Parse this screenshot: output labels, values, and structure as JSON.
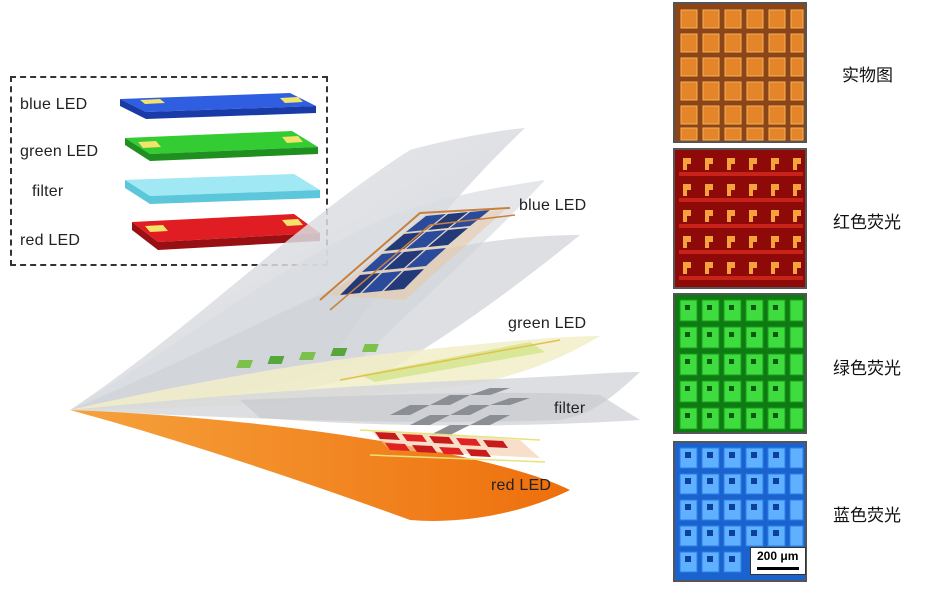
{
  "legend": {
    "labels": [
      "blue LED",
      "green LED",
      "filter",
      "red LED"
    ]
  },
  "stack_labels": {
    "blue": "blue LED",
    "green": "green LED",
    "filter": "filter",
    "red": "red LED"
  },
  "panels": [
    {
      "caption": "实物图",
      "theme": "photo-orange",
      "color": "#c7641b"
    },
    {
      "caption": "红色荧光",
      "theme": "red-fluorescence",
      "color": "#c2170f"
    },
    {
      "caption": "绿色荧光",
      "theme": "green-fluorescence",
      "color": "#18b81c"
    },
    {
      "caption": "蓝色荧光",
      "theme": "blue-fluorescence",
      "color": "#1f74e0"
    }
  ],
  "scale_bar": "200 μm",
  "colors": {
    "blue_layer": "#1f4fd1",
    "green_layer": "#22bb22",
    "filter_layer": "#8fe3f0",
    "red_layer": "#d8161b",
    "substrate": "#f07e12",
    "contact_pad": "#f3e36a"
  }
}
